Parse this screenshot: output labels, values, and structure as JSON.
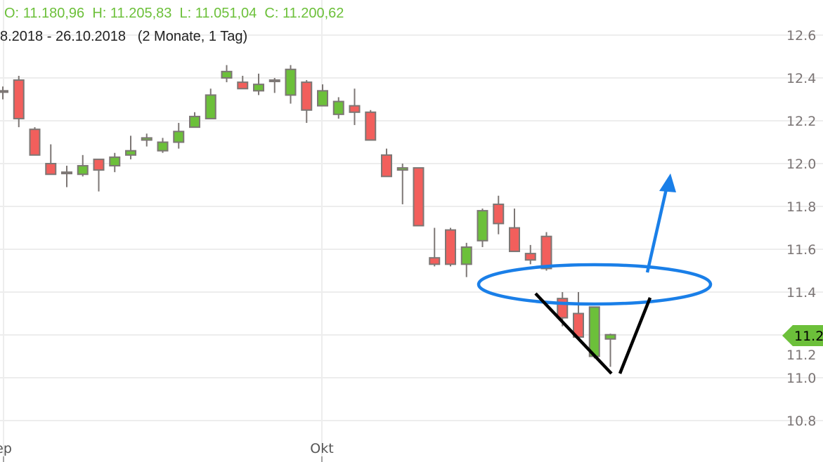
{
  "header": {
    "ohlc": {
      "o_label": "O:",
      "o": "11.180,96",
      "h_label": "H:",
      "h": "11.205,83",
      "l_label": "L:",
      "l": "11.051,04",
      "c_label": "C:",
      "c": "11.200,62"
    },
    "range_text": "8.2018 - 26.10.2018",
    "duration_text": "(2 Monate, 1 Tag)"
  },
  "colors": {
    "up": "#6cc03a",
    "down": "#f25f5c",
    "wick": "#7d7775",
    "grid": "#ededed",
    "annotation_blue": "#1a7fe8",
    "annotation_black": "#000000",
    "ohlc_text": "#6cc03a"
  },
  "chart_data": {
    "type": "candlestick",
    "ylim": [
      10.7,
      12.7
    ],
    "yticks": [
      "12.6",
      "12.4",
      "12.2",
      "12.0",
      "11.8",
      "11.6",
      "11.4",
      "11.2",
      "11.0",
      "10.8"
    ],
    "ytick_values": [
      12.6,
      12.4,
      12.2,
      12.0,
      11.8,
      11.6,
      11.4,
      11.2,
      11.0,
      10.8
    ],
    "xticks": [
      {
        "label": "ep",
        "index": 0
      },
      {
        "label": "Okt",
        "index": 20
      }
    ],
    "grid": true,
    "last_price_label": "11.2",
    "last_price": 11.2006,
    "candles": [
      {
        "o": 12.34,
        "h": 12.36,
        "l": 12.3,
        "c": 12.34
      },
      {
        "o": 12.39,
        "h": 12.41,
        "l": 12.17,
        "c": 12.21
      },
      {
        "o": 12.16,
        "h": 12.17,
        "l": 12.04,
        "c": 12.04
      },
      {
        "o": 12.0,
        "h": 12.09,
        "l": 11.95,
        "c": 11.95
      },
      {
        "o": 11.96,
        "h": 11.99,
        "l": 11.89,
        "c": 11.96
      },
      {
        "o": 11.95,
        "h": 12.04,
        "l": 11.94,
        "c": 11.99
      },
      {
        "o": 12.02,
        "h": 12.02,
        "l": 11.87,
        "c": 11.97
      },
      {
        "o": 11.99,
        "h": 12.05,
        "l": 11.96,
        "c": 12.03
      },
      {
        "o": 12.04,
        "h": 12.13,
        "l": 12.02,
        "c": 12.06
      },
      {
        "o": 12.11,
        "h": 12.14,
        "l": 12.08,
        "c": 12.12
      },
      {
        "o": 12.06,
        "h": 12.12,
        "l": 12.05,
        "c": 12.1
      },
      {
        "o": 12.1,
        "h": 12.19,
        "l": 12.07,
        "c": 12.15
      },
      {
        "o": 12.17,
        "h": 12.24,
        "l": 12.17,
        "c": 12.22
      },
      {
        "o": 12.21,
        "h": 12.35,
        "l": 12.21,
        "c": 12.32
      },
      {
        "o": 12.4,
        "h": 12.46,
        "l": 12.38,
        "c": 12.43
      },
      {
        "o": 12.38,
        "h": 12.41,
        "l": 12.35,
        "c": 12.35
      },
      {
        "o": 12.34,
        "h": 12.42,
        "l": 12.32,
        "c": 12.37
      },
      {
        "o": 12.39,
        "h": 12.4,
        "l": 12.33,
        "c": 12.39
      },
      {
        "o": 12.32,
        "h": 12.46,
        "l": 12.28,
        "c": 12.44
      },
      {
        "o": 12.38,
        "h": 12.39,
        "l": 12.19,
        "c": 12.25
      },
      {
        "o": 12.27,
        "h": 12.37,
        "l": 12.27,
        "c": 12.34
      },
      {
        "o": 12.23,
        "h": 12.31,
        "l": 12.21,
        "c": 12.29
      },
      {
        "o": 12.27,
        "h": 12.35,
        "l": 12.18,
        "c": 12.24
      },
      {
        "o": 12.24,
        "h": 12.25,
        "l": 12.11,
        "c": 12.11
      },
      {
        "o": 12.04,
        "h": 12.07,
        "l": 11.94,
        "c": 11.94
      },
      {
        "o": 11.97,
        "h": 12.0,
        "l": 11.81,
        "c": 11.98
      },
      {
        "o": 11.98,
        "h": 11.98,
        "l": 11.71,
        "c": 11.71
      },
      {
        "o": 11.56,
        "h": 11.7,
        "l": 11.52,
        "c": 11.53
      },
      {
        "o": 11.69,
        "h": 11.7,
        "l": 11.52,
        "c": 11.53
      },
      {
        "o": 11.53,
        "h": 11.63,
        "l": 11.47,
        "c": 11.61
      },
      {
        "o": 11.64,
        "h": 11.79,
        "l": 11.61,
        "c": 11.78
      },
      {
        "o": 11.81,
        "h": 11.85,
        "l": 11.67,
        "c": 11.72
      },
      {
        "o": 11.7,
        "h": 11.79,
        "l": 11.59,
        "c": 11.59
      },
      {
        "o": 11.58,
        "h": 11.62,
        "l": 11.53,
        "c": 11.55
      },
      {
        "o": 11.66,
        "h": 11.68,
        "l": 11.5,
        "c": 11.51
      },
      {
        "o": 11.37,
        "h": 11.4,
        "l": 11.24,
        "c": 11.28
      },
      {
        "o": 11.3,
        "h": 11.4,
        "l": 11.19,
        "c": 11.19
      },
      {
        "o": 11.1,
        "h": 11.33,
        "l": 11.09,
        "c": 11.33
      },
      {
        "o": 11.181,
        "h": 11.206,
        "l": 11.051,
        "c": 11.201
      }
    ]
  }
}
